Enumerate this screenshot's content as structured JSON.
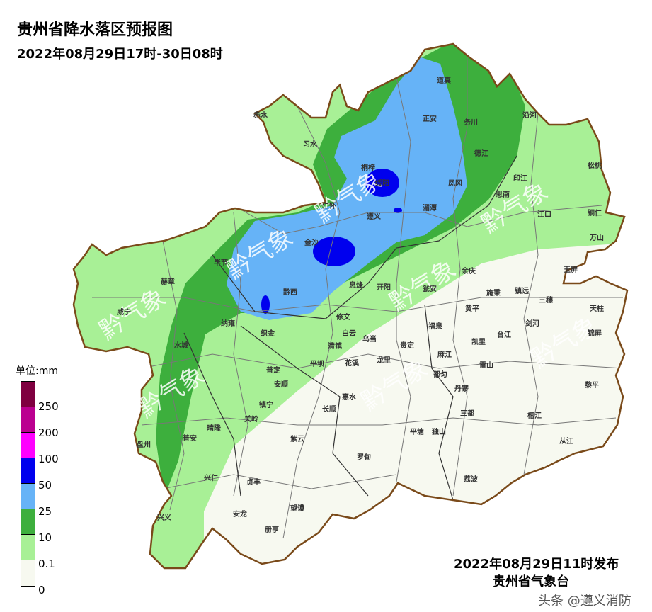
{
  "header": {
    "title": "贵州省降水落区预报图",
    "period": "2022年08月29日17时-30日08时"
  },
  "legend": {
    "unit": "单位:mm",
    "colors": [
      "#7f0040",
      "#bb0090",
      "#ff00ff",
      "#0000ee",
      "#66b3f7",
      "#3daf3d",
      "#a8f096",
      "#f7f9f0"
    ],
    "labels": [
      "250",
      "200",
      "100",
      "50",
      "25",
      "10",
      "0.1",
      "0"
    ]
  },
  "map": {
    "border_color": "#7a4a1a",
    "watermark": "黔气象",
    "cities": [
      "赤水",
      "习水",
      "道真",
      "正安",
      "务川",
      "沿河",
      "桐梓",
      "德江",
      "松桃",
      "绥阳",
      "凤冈",
      "印江",
      "思南",
      "仁怀",
      "遵义",
      "湄潭",
      "江口",
      "铜仁",
      "万山",
      "金沙",
      "毕节",
      "赫章",
      "黔西",
      "息烽",
      "开阳",
      "瓮安",
      "余庆",
      "玉屏",
      "威宁",
      "纳雍",
      "织金",
      "修文",
      "施秉",
      "镇远",
      "三穗",
      "天柱",
      "黄平",
      "锦屏",
      "水城",
      "清镇",
      "白云",
      "乌当",
      "福泉",
      "凯里",
      "台江",
      "剑河",
      "平坝",
      "花溪",
      "龙里",
      "贵定",
      "麻江",
      "雷山",
      "安顺",
      "普定",
      "都匀",
      "丹寨",
      "黎平",
      "镇宁",
      "惠水",
      "长顺",
      "三都",
      "榕江",
      "关岭",
      "紫云",
      "平塘",
      "独山",
      "从江",
      "盘州",
      "普安",
      "晴隆",
      "兴仁",
      "贞丰",
      "罗甸",
      "荔波",
      "兴义",
      "安龙",
      "望谟",
      "册亨"
    ]
  },
  "footer": {
    "issued": "2022年08月29日11时发布",
    "agency": "贵州省气象台",
    "credit": "头条 @遵义消防"
  }
}
